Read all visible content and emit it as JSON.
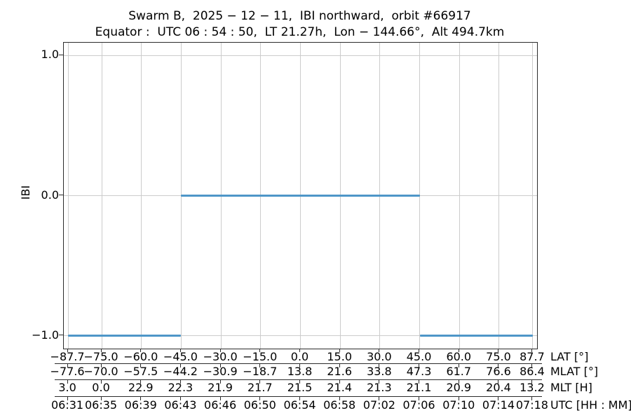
{
  "title": {
    "line1": "Swarm B,  2025 − 12 − 11,  IBI northward,  orbit #66917",
    "line2": "Equator :  UTC 06 : 54 : 50,  LT 21.27h,  Lon − 144.66°,  Alt 494.7km"
  },
  "chart_data": {
    "type": "line",
    "title": "Swarm B, 2025-12-11, IBI northward, orbit #66917",
    "subtitle": "Equator: UTC 06:54:50, LT 21.27h, Lon -144.66°, Alt 494.7km",
    "ylabel": "IBI",
    "ylim": [
      -1.09,
      1.09
    ],
    "yticks": [
      {
        "value": 1.0,
        "label": "1.0"
      },
      {
        "value": 0.0,
        "label": "0.0"
      },
      {
        "value": -1.0,
        "label": "−1.0"
      }
    ],
    "xlim": [
      -89.3,
      89.3
    ],
    "grid": true,
    "line_color": "#4e96c8",
    "x_tick_lats": [
      -87.7,
      -75.0,
      -60.0,
      -45.0,
      -30.0,
      -15.0,
      0.0,
      15.0,
      30.0,
      45.0,
      60.0,
      75.0,
      87.7
    ],
    "series": [
      {
        "name": "IBI",
        "color": "#4e96c8",
        "segments": [
          {
            "lat_start": -87.7,
            "lat_end": -45.0,
            "value": -1.0
          },
          {
            "lat_start": -45.0,
            "lat_end": 45.0,
            "value": 0.0
          },
          {
            "lat_start": 45.0,
            "lat_end": 87.7,
            "value": -1.0
          }
        ]
      }
    ],
    "x_axis_rows": [
      {
        "label": "LAT [°]",
        "ticks": [
          "−87.7",
          "−75.0",
          "−60.0",
          "−45.0",
          "−30.0",
          "−15.0",
          "0.0",
          "15.0",
          "30.0",
          "45.0",
          "60.0",
          "75.0",
          "87.7"
        ]
      },
      {
        "label": "MLAT [°]",
        "ticks": [
          "−77.6",
          "−70.0",
          "−57.5",
          "−44.2",
          "−30.9",
          "−18.7",
          "13.8",
          "21.6",
          "33.8",
          "47.3",
          "61.7",
          "76.6",
          "86.4"
        ]
      },
      {
        "label": "MLT [H]",
        "ticks": [
          "3.0",
          "0.0",
          "22.9",
          "22.3",
          "21.9",
          "21.7",
          "21.5",
          "21.4",
          "21.3",
          "21.1",
          "20.9",
          "20.4",
          "13.2"
        ]
      },
      {
        "label": "UTC [HH : MM]",
        "ticks": [
          "06:31",
          "06:35",
          "06:39",
          "06:43",
          "06:46",
          "06:50",
          "06:54",
          "06:58",
          "07:02",
          "07:06",
          "07:10",
          "07:14",
          "07:18"
        ]
      }
    ]
  }
}
